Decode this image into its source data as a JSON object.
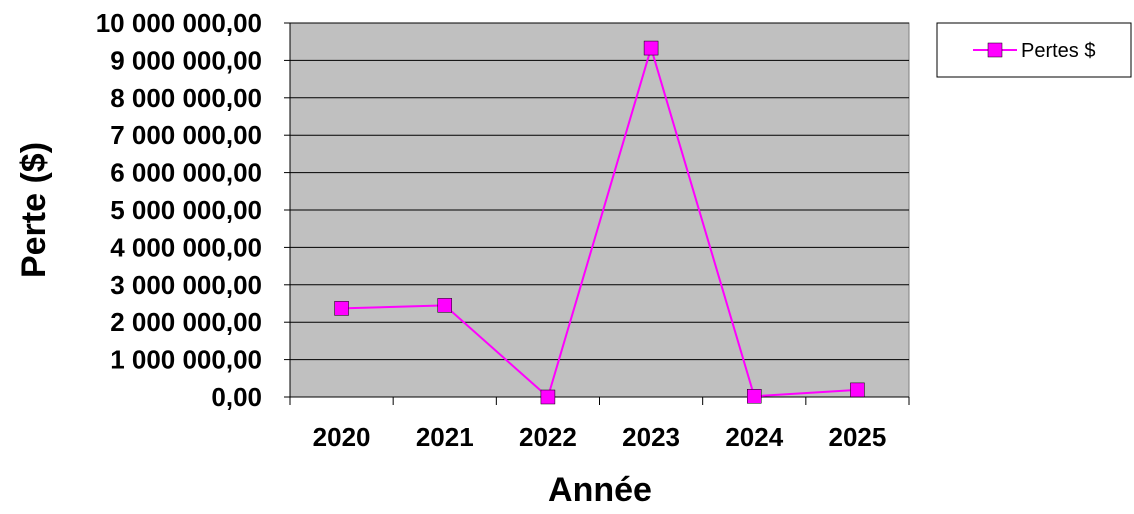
{
  "chart_data": {
    "type": "line",
    "title": "",
    "xlabel": "Année",
    "ylabel": "Perte ($)",
    "categories": [
      "2020",
      "2021",
      "2022",
      "2023",
      "2024",
      "2025"
    ],
    "series": [
      {
        "name": "Pertes $",
        "values": [
          2370000,
          2450000,
          0,
          9330000,
          20000,
          190000
        ],
        "color": "#ff00ff",
        "marker": "square"
      }
    ],
    "ylim": [
      0,
      10000000
    ],
    "yticks": [
      0,
      1000000,
      2000000,
      3000000,
      4000000,
      5000000,
      6000000,
      7000000,
      8000000,
      9000000,
      10000000
    ],
    "ytick_labels": [
      "0,00",
      "1 000 000,00",
      "2 000 000,00",
      "3 000 000,00",
      "4 000 000,00",
      "5 000 000,00",
      "6 000 000,00",
      "7 000 000,00",
      "8 000 000,00",
      "9 000 000,00",
      "10 000 000,00"
    ],
    "grid": true,
    "legend_position": "right",
    "colors": {
      "plot_background": "#c0c0c0",
      "gridline": "#000000",
      "series": "#ff00ff"
    }
  }
}
